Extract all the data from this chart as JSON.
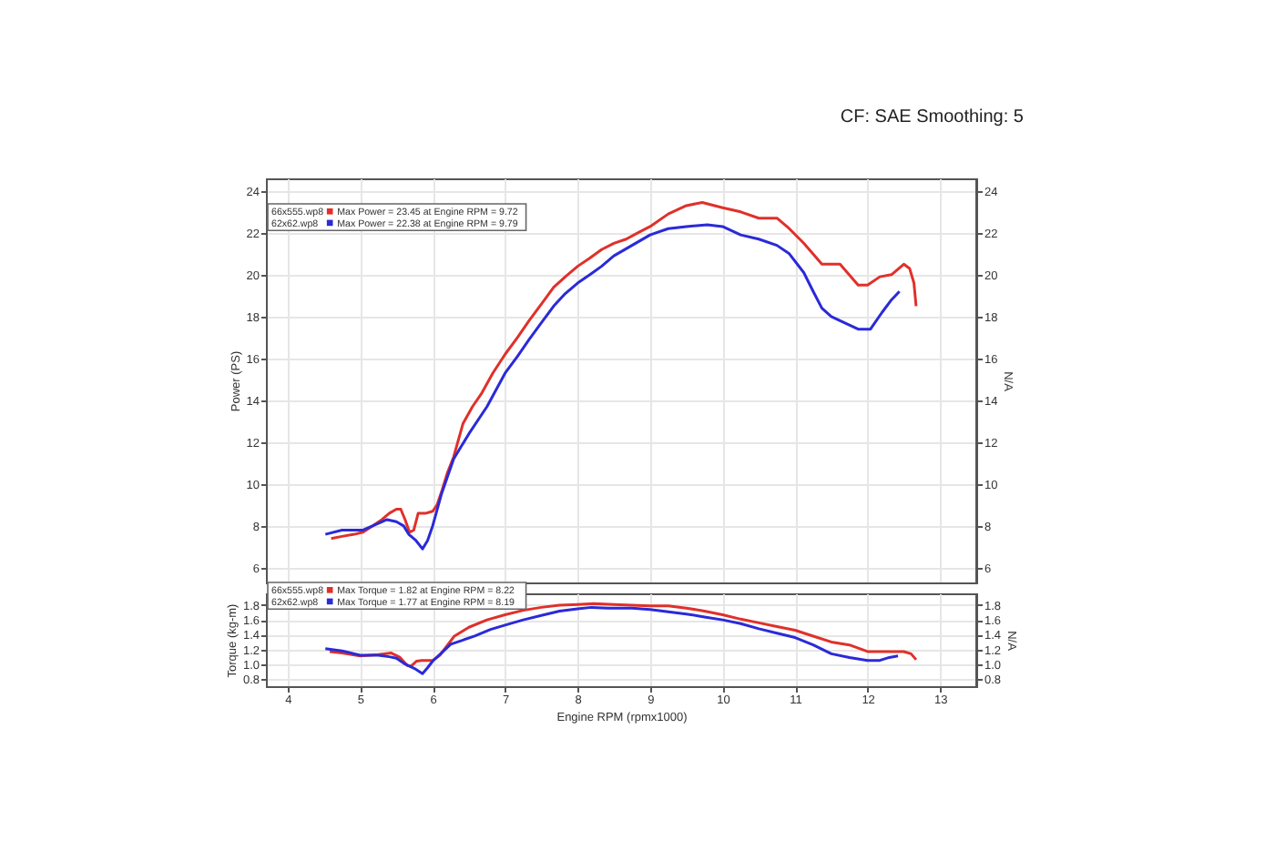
{
  "chart_data": [
    {
      "type": "line",
      "subtitle": "CF: SAE Smoothing: 5",
      "ylabel": "Power (PS)",
      "y2label": "N/A",
      "annotations": [
        "Max Power = 23.45 at Engine RPM = 9.72",
        "Max Power = 22.38 at Engine RPM = 9.79"
      ],
      "xlim": [
        3.7,
        13.5
      ],
      "xticks": [
        4,
        5,
        6,
        7,
        8,
        9,
        10,
        11,
        12,
        13
      ],
      "ylim": [
        5.3,
        24.6
      ],
      "yticks": [
        6,
        8,
        10,
        12,
        14,
        16,
        18,
        20,
        22,
        24
      ],
      "y2lim": [
        5.3,
        24.6
      ],
      "y2ticks": [
        6,
        8,
        10,
        12,
        14,
        16,
        18,
        20,
        22,
        24
      ],
      "tick_labels": "y",
      "grid": true,
      "legend": "top left",
      "series": [
        {
          "name": "66x555.wp8",
          "color": "#e0302a",
          "x": [
            4.6,
            4.75,
            4.92,
            5.04,
            5.17,
            5.3,
            5.4,
            5.5,
            5.56,
            5.62,
            5.68,
            5.74,
            5.8,
            5.9,
            6.0,
            6.06,
            6.12,
            6.2,
            6.29,
            6.42,
            6.55,
            6.67,
            6.83,
            7.0,
            7.17,
            7.33,
            7.5,
            7.67,
            7.83,
            8.0,
            8.17,
            8.33,
            8.5,
            8.67,
            8.83,
            9.0,
            9.25,
            9.5,
            9.72,
            10.0,
            10.25,
            10.5,
            10.75,
            10.92,
            11.12,
            11.37,
            11.62,
            11.87,
            12.0,
            12.17,
            12.33,
            12.5,
            12.58,
            12.64,
            12.67
          ],
          "values": [
            7.4,
            7.5,
            7.6,
            7.7,
            8.0,
            8.3,
            8.6,
            8.8,
            8.8,
            8.3,
            7.7,
            7.8,
            8.6,
            8.6,
            8.7,
            9.0,
            9.6,
            10.5,
            11.3,
            12.9,
            13.7,
            14.3,
            15.3,
            16.2,
            17.0,
            17.8,
            18.6,
            19.4,
            19.9,
            20.4,
            20.8,
            21.2,
            21.5,
            21.7,
            22.0,
            22.3,
            22.9,
            23.3,
            23.45,
            23.2,
            23.0,
            22.7,
            22.7,
            22.2,
            21.5,
            20.5,
            20.5,
            19.5,
            19.5,
            19.9,
            20.0,
            20.5,
            20.3,
            19.6,
            18.5
          ]
        },
        {
          "name": "62x62.wp8",
          "color": "#2a2ad8",
          "x": [
            4.52,
            4.75,
            5.04,
            5.17,
            5.3,
            5.37,
            5.5,
            5.6,
            5.67,
            5.77,
            5.86,
            5.93,
            6.0,
            6.12,
            6.29,
            6.5,
            6.75,
            7.0,
            7.17,
            7.33,
            7.5,
            7.67,
            7.83,
            8.0,
            8.17,
            8.33,
            8.5,
            8.75,
            9.0,
            9.25,
            9.5,
            9.79,
            10.0,
            10.25,
            10.5,
            10.75,
            10.92,
            11.12,
            11.25,
            11.37,
            11.5,
            11.62,
            11.87,
            12.04,
            12.2,
            12.33,
            12.44
          ],
          "values": [
            7.6,
            7.8,
            7.8,
            8.0,
            8.2,
            8.3,
            8.2,
            8.0,
            7.6,
            7.3,
            6.9,
            7.3,
            8.0,
            9.5,
            11.2,
            12.4,
            13.7,
            15.3,
            16.1,
            16.9,
            17.7,
            18.5,
            19.1,
            19.6,
            20.0,
            20.4,
            20.9,
            21.4,
            21.9,
            22.2,
            22.3,
            22.38,
            22.3,
            21.9,
            21.7,
            21.4,
            21.0,
            20.1,
            19.2,
            18.4,
            18.0,
            17.8,
            17.4,
            17.4,
            18.2,
            18.8,
            19.2
          ]
        }
      ]
    },
    {
      "type": "line",
      "xlabel": "Engine RPM (rpmx1000)",
      "ylabel": "Torque (kg-m)",
      "y2label": "N/A",
      "annotations": [
        "Max Torque = 1.82 at Engine RPM = 8.22",
        "Max Torque = 1.77 at Engine RPM = 8.19"
      ],
      "xlim": [
        3.7,
        13.5
      ],
      "xticks": [
        4,
        5,
        6,
        7,
        8,
        9,
        10,
        11,
        12,
        13
      ],
      "ylim": [
        0.7,
        1.96
      ],
      "yticks": [
        0.8,
        {
          "value": 1,
          "label": "1.0"
        },
        1.2,
        1.4,
        1.6,
        1.8
      ],
      "y2lim": [
        0.7,
        1.96
      ],
      "y2ticks": [
        0.8,
        {
          "value": 1,
          "label": "1.0"
        },
        1.2,
        1.4,
        1.6,
        1.8
      ],
      "grid": true,
      "legend": "top left",
      "series": [
        {
          "name": "66x555.wp8",
          "color": "#e0302a",
          "x": [
            4.58,
            4.75,
            5.0,
            5.25,
            5.43,
            5.55,
            5.65,
            5.7,
            5.78,
            5.85,
            6.0,
            6.1,
            6.2,
            6.3,
            6.5,
            6.75,
            7.0,
            7.25,
            7.5,
            7.75,
            8.0,
            8.22,
            8.5,
            8.75,
            9.0,
            9.25,
            9.5,
            9.75,
            10.0,
            10.25,
            10.5,
            10.75,
            11.0,
            11.25,
            11.5,
            11.75,
            12.0,
            12.25,
            12.5,
            12.6,
            12.67
          ],
          "values": [
            1.17,
            1.15,
            1.11,
            1.13,
            1.15,
            1.09,
            0.98,
            0.97,
            1.04,
            1.05,
            1.05,
            1.12,
            1.25,
            1.38,
            1.5,
            1.6,
            1.67,
            1.73,
            1.77,
            1.8,
            1.81,
            1.82,
            1.81,
            1.8,
            1.79,
            1.79,
            1.76,
            1.72,
            1.67,
            1.61,
            1.56,
            1.51,
            1.46,
            1.38,
            1.3,
            1.26,
            1.17,
            1.17,
            1.17,
            1.14,
            1.06
          ]
        },
        {
          "name": "62x62.wp8",
          "color": "#2a2ad8",
          "x": [
            4.52,
            4.75,
            5.0,
            5.25,
            5.4,
            5.5,
            5.62,
            5.75,
            5.86,
            5.93,
            6.0,
            6.12,
            6.25,
            6.4,
            6.58,
            6.8,
            7.0,
            7.25,
            7.5,
            7.75,
            8.0,
            8.19,
            8.42,
            8.75,
            9.0,
            9.25,
            9.5,
            9.75,
            10.0,
            10.25,
            10.5,
            10.75,
            11.0,
            11.25,
            11.5,
            11.75,
            12.0,
            12.17,
            12.3,
            12.42
          ],
          "values": [
            1.21,
            1.18,
            1.12,
            1.12,
            1.1,
            1.08,
            1.0,
            0.94,
            0.87,
            0.95,
            1.04,
            1.15,
            1.27,
            1.32,
            1.38,
            1.47,
            1.53,
            1.6,
            1.66,
            1.72,
            1.75,
            1.77,
            1.76,
            1.76,
            1.74,
            1.71,
            1.68,
            1.64,
            1.6,
            1.55,
            1.48,
            1.42,
            1.36,
            1.26,
            1.14,
            1.09,
            1.05,
            1.05,
            1.09,
            1.11
          ]
        }
      ]
    }
  ]
}
